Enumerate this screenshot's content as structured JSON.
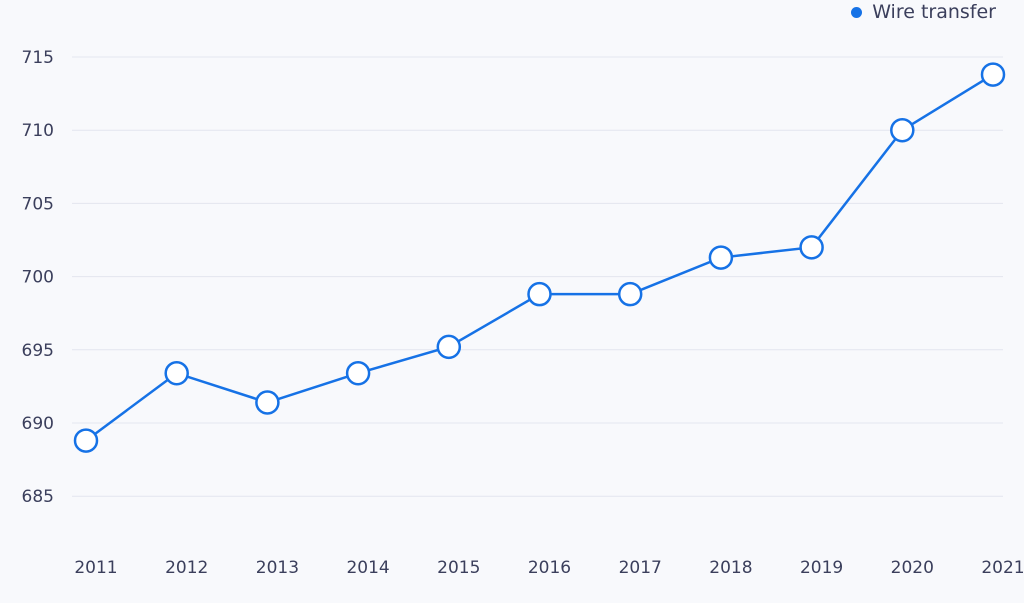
{
  "chart_data": {
    "type": "line",
    "title": "",
    "xlabel": "",
    "ylabel": "",
    "categories": [
      "2011",
      "2012",
      "2013",
      "2014",
      "2015",
      "2016",
      "2017",
      "2018",
      "2019",
      "2020",
      "2021"
    ],
    "series": [
      {
        "name": "Wire transfer",
        "color": "#1672e6",
        "values": [
          688.8,
          693.4,
          691.4,
          693.4,
          695.2,
          698.8,
          698.8,
          701.3,
          702.0,
          710.0,
          713.8
        ]
      }
    ],
    "yticks": [
      685,
      690,
      695,
      700,
      705,
      710,
      715
    ],
    "ylim": [
      682.5,
      716.5
    ],
    "grid": true,
    "legend_position": "top-right"
  }
}
